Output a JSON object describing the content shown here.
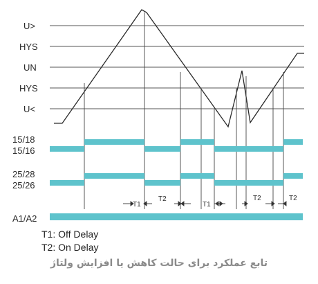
{
  "levels": {
    "u_over": "U>",
    "hys_top": "HYS",
    "un": "UN",
    "hys_bottom": "HYS",
    "u_under": "U<"
  },
  "relay_rows": {
    "r1_top": "15/18",
    "r1_bottom": "15/16",
    "r2_top": "25/28",
    "r2_bottom": "25/26",
    "supply": "A1/A2"
  },
  "timers": [
    "T1",
    "T2",
    "T1",
    "T2",
    "T2"
  ],
  "legend": {
    "t1": "T1: Off Delay",
    "t2": "T2: On Delay"
  },
  "caption": "تابع عملکرد برای حالت کاهش یا افزایش ولتاژ",
  "colors": {
    "relay": "#5ec3cc",
    "line": "#333333",
    "grid": "#555555"
  }
}
